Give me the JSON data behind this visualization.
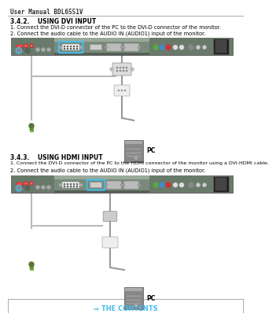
{
  "page_header": "User Manual BDL6551V",
  "section_342_title": "3.4.2.    USING DVI INPUT",
  "section_342_line1": "1. Connect the DVI-D connector of the PC to the DVI-D connector of the monitor.",
  "section_342_line2": "2. Connect the audio cable to the AUDIO IN (AUDIO1) input of the monitor.",
  "section_343_title": "3.4.3.    USING HDMI INPUT",
  "section_343_line1": "1. Connect the DVI-D connector of the PC to the HDMI connector of the monitor using a DVI-HDMI cable.",
  "section_343_line2": "2. Connect the audio cable to the AUDIO IN (AUDIO1) input of the monitor.",
  "footer_text": "⇒ THE CONTENTS",
  "bg_color": "#ffffff",
  "text_color": "#000000",
  "footer_link_color": "#44bbee",
  "monitor_bg": "#7a8a7a",
  "monitor_dark": "#555f55",
  "cable_gray": "#999999",
  "cable_green": "#7aaa44",
  "highlight_cyan": "#44bbee",
  "pc_body": "#888888",
  "pc_dark": "#555555",
  "connector_light": "#cccccc",
  "connector_mid": "#aaaaaa"
}
